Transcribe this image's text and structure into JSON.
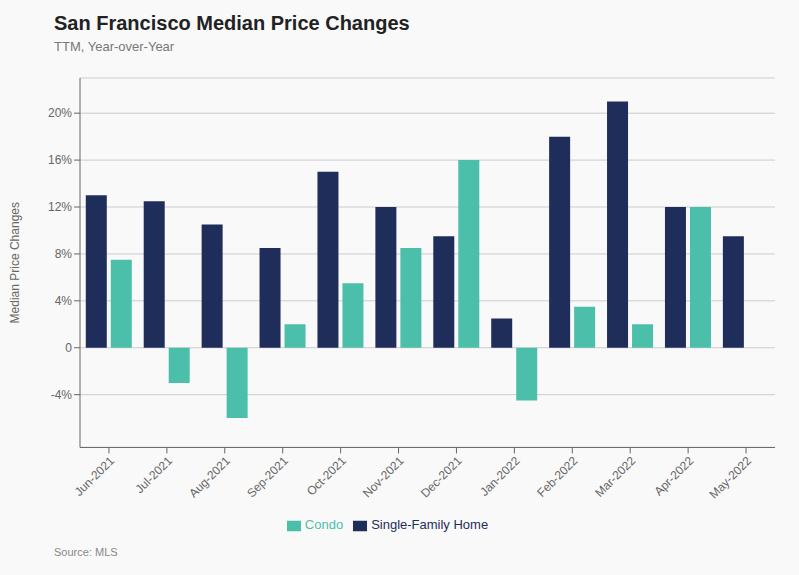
{
  "chart_data": {
    "type": "bar",
    "title": "San Francisco Median Price Changes",
    "subtitle": "TTM, Year-over-Year",
    "y_label": "Median Price Changes",
    "annotations": [
      "Source:  MLS"
    ],
    "categories": [
      "Jun-2021",
      "Jul-2021",
      "Aug-2021",
      "Sep-2021",
      "Oct-2021",
      "Nov-2021",
      "Dec-2021",
      "Jan-2022",
      "Feb-2022",
      "Mar-2022",
      "Apr-2022",
      "May-2022"
    ],
    "series": [
      {
        "name": "Single-Family Home",
        "color": "#1e2d5a",
        "values": [
          13.0,
          12.5,
          10.5,
          8.5,
          15.0,
          12.0,
          9.5,
          2.5,
          18.0,
          21.0,
          12.0,
          9.5
        ]
      },
      {
        "name": "Condo",
        "color": "#4cbfaa",
        "values": [
          7.5,
          -3.0,
          -6.0,
          2.0,
          5.5,
          8.5,
          16.0,
          -4.5,
          3.5,
          2.0,
          12.0,
          0.0
        ]
      }
    ],
    "ylim": [
      -8.5,
      23
    ],
    "yticks": [
      {
        "value": -4,
        "label": "-4%"
      },
      0,
      {
        "value": 4,
        "label": "4%"
      },
      {
        "value": 8,
        "label": "8%"
      },
      {
        "value": 12,
        "label": "12%"
      },
      {
        "value": 16,
        "label": "16%"
      },
      {
        "value": 20,
        "label": "20%"
      }
    ],
    "grid": true,
    "legend": "bottom"
  }
}
